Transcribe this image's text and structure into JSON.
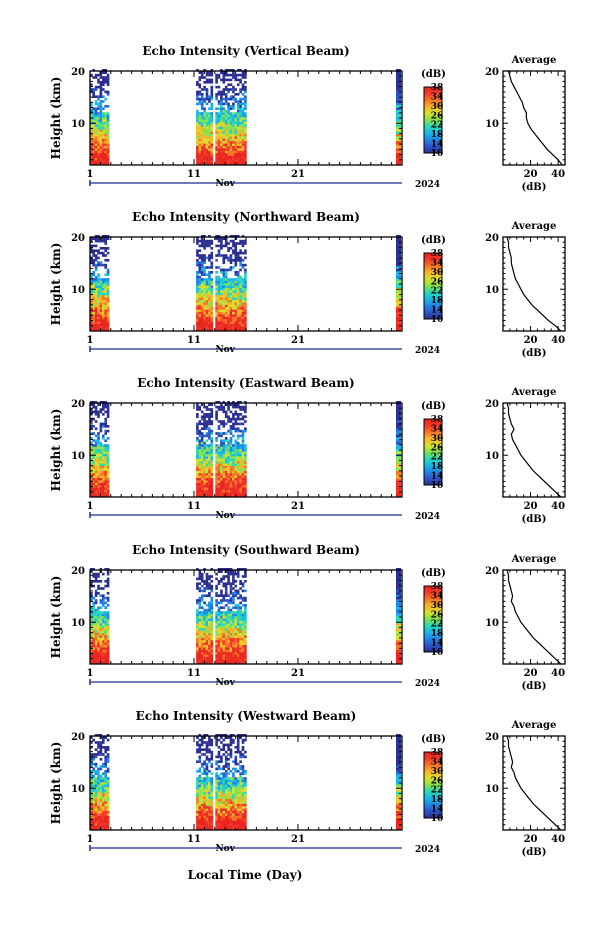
{
  "figure": {
    "time_label": "Local Time (Day)",
    "height_label": "Height (km)",
    "month_label": "Nov",
    "year_label": "2024",
    "colorbar_unit": "(dB)",
    "average_title": "Average",
    "average_xlabel": "(dB)",
    "colors": {
      "colormap": [
        "#2b2f8f",
        "#2c53c6",
        "#1f86e6",
        "#18b7e8",
        "#28d9b8",
        "#86e24e",
        "#d6e02c",
        "#f7b62a",
        "#f77526",
        "#f23a27",
        "#e8261f"
      ],
      "axes": "#000000",
      "time_axis": "#1f2f8f"
    }
  },
  "chart_data": [
    {
      "type": "heatmap",
      "title": "Echo Intensity (Vertical Beam)",
      "xlabel": "",
      "ylabel": "Height (km)",
      "x_ticks": [
        "1",
        "11",
        "21"
      ],
      "xlim": [
        1,
        31
      ],
      "ylim": [
        2,
        20
      ],
      "y_ticks": [
        10,
        20
      ],
      "data_segments_day": [
        [
          1,
          2.8
        ],
        [
          11.2,
          16
        ]
      ],
      "colorbar": {
        "ticks": [
          10,
          14,
          18,
          22,
          26,
          30,
          34,
          38
        ],
        "range": [
          10,
          38
        ]
      },
      "average_profile": {
        "x_ticks": [
          20,
          40
        ],
        "xlim": [
          0,
          45
        ],
        "height": [
          2,
          3,
          4,
          5,
          6,
          7,
          8,
          9,
          10,
          11,
          12,
          13,
          14,
          15,
          16,
          17,
          18,
          19,
          20
        ],
        "db": [
          43,
          40,
          36,
          32,
          29,
          26,
          23,
          20,
          18,
          17,
          17,
          15,
          14,
          12,
          10,
          8,
          6,
          5,
          4
        ]
      }
    },
    {
      "type": "heatmap",
      "title": "Echo Intensity (Northward Beam)",
      "xlabel": "",
      "ylabel": "Height (km)",
      "x_ticks": [
        "1",
        "11",
        "21"
      ],
      "xlim": [
        1,
        31
      ],
      "ylim": [
        2,
        20
      ],
      "y_ticks": [
        10,
        20
      ],
      "data_segments_day": [
        [
          1,
          2.8
        ],
        [
          11.2,
          16
        ]
      ],
      "colorbar": {
        "ticks": [
          10,
          14,
          18,
          22,
          26,
          30,
          34,
          38
        ],
        "range": [
          10,
          38
        ]
      },
      "average_profile": {
        "x_ticks": [
          20,
          40
        ],
        "xlim": [
          0,
          45
        ],
        "height": [
          2,
          3,
          4,
          5,
          6,
          7,
          8,
          9,
          10,
          11,
          12,
          13,
          14,
          15,
          16,
          17,
          18,
          19,
          20
        ],
        "db": [
          42,
          38,
          33,
          29,
          25,
          21,
          18,
          15,
          13,
          11,
          9,
          8,
          7,
          6,
          6,
          5,
          4,
          4,
          3
        ]
      }
    },
    {
      "type": "heatmap",
      "title": "Echo Intensity (Eastward Beam)",
      "xlabel": "",
      "ylabel": "Height (km)",
      "x_ticks": [
        "1",
        "11",
        "21"
      ],
      "xlim": [
        1,
        31
      ],
      "ylim": [
        2,
        20
      ],
      "y_ticks": [
        10,
        20
      ],
      "data_segments_day": [
        [
          1,
          2.8
        ],
        [
          11.2,
          16
        ]
      ],
      "colorbar": {
        "ticks": [
          10,
          14,
          18,
          22,
          26,
          30,
          34,
          38
        ],
        "range": [
          10,
          38
        ]
      },
      "average_profile": {
        "x_ticks": [
          20,
          40
        ],
        "xlim": [
          0,
          45
        ],
        "height": [
          2,
          3,
          4,
          5,
          6,
          7,
          8,
          9,
          10,
          11,
          12,
          13,
          14,
          15,
          16,
          17,
          18,
          19,
          20
        ],
        "db": [
          42,
          38,
          34,
          30,
          26,
          22,
          19,
          16,
          13,
          11,
          9,
          7,
          6,
          8,
          6,
          5,
          4,
          4,
          3
        ]
      }
    },
    {
      "type": "heatmap",
      "title": "Echo Intensity (Southward Beam)",
      "xlabel": "",
      "ylabel": "Height (km)",
      "x_ticks": [
        "1",
        "11",
        "21"
      ],
      "xlim": [
        1,
        31
      ],
      "ylim": [
        2,
        20
      ],
      "y_ticks": [
        10,
        20
      ],
      "data_segments_day": [
        [
          1,
          2.8
        ],
        [
          11.2,
          16
        ]
      ],
      "colorbar": {
        "ticks": [
          10,
          14,
          18,
          22,
          26,
          30,
          34,
          38
        ],
        "range": [
          10,
          38
        ]
      },
      "average_profile": {
        "x_ticks": [
          20,
          40
        ],
        "xlim": [
          0,
          45
        ],
        "height": [
          2,
          3,
          4,
          5,
          6,
          7,
          8,
          9,
          10,
          11,
          12,
          13,
          14,
          15,
          16,
          17,
          18,
          19,
          20
        ],
        "db": [
          42,
          38,
          34,
          30,
          26,
          22,
          19,
          16,
          13,
          11,
          9,
          8,
          6,
          7,
          6,
          5,
          4,
          4,
          3
        ]
      }
    },
    {
      "type": "heatmap",
      "title": "Echo Intensity (Westward Beam)",
      "xlabel": "Local Time (Day)",
      "ylabel": "Height (km)",
      "x_ticks": [
        "1",
        "11",
        "21"
      ],
      "xlim": [
        1,
        31
      ],
      "ylim": [
        2,
        20
      ],
      "y_ticks": [
        10,
        20
      ],
      "data_segments_day": [
        [
          1,
          2.8
        ],
        [
          11.2,
          16
        ]
      ],
      "colorbar": {
        "ticks": [
          10,
          14,
          18,
          22,
          26,
          30,
          34,
          38
        ],
        "range": [
          10,
          38
        ]
      },
      "average_profile": {
        "x_ticks": [
          20,
          40
        ],
        "xlim": [
          0,
          45
        ],
        "height": [
          2,
          3,
          4,
          5,
          6,
          7,
          8,
          9,
          10,
          11,
          12,
          13,
          14,
          15,
          16,
          17,
          18,
          19,
          20
        ],
        "db": [
          42,
          38,
          34,
          30,
          26,
          22,
          19,
          16,
          13,
          11,
          9,
          8,
          6,
          7,
          6,
          5,
          4,
          4,
          3
        ]
      }
    }
  ]
}
